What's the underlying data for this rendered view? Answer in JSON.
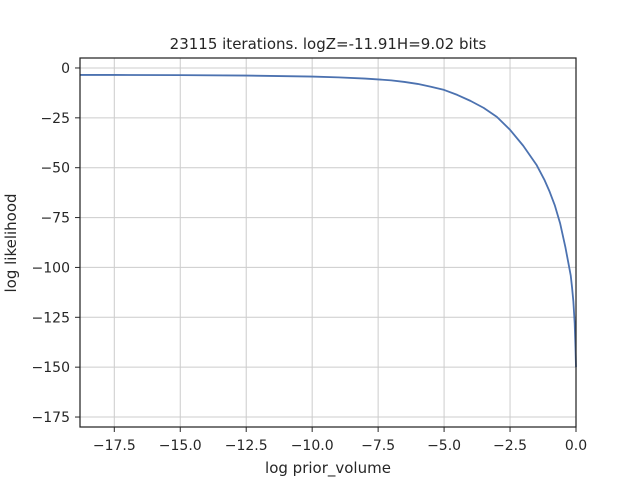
{
  "chart_data": {
    "type": "line",
    "title": "23115 iterations. logZ=-11.91H=9.02 bits",
    "xlabel": "log prior_volume",
    "ylabel": "log likelihood",
    "xlim": [
      -18.8,
      0.0
    ],
    "ylim": [
      -180,
      5
    ],
    "grid": true,
    "xticks": [
      -17.5,
      -15.0,
      -12.5,
      -10.0,
      -7.5,
      -5.0,
      -2.5,
      0.0
    ],
    "xtick_labels": [
      "−17.5",
      "−15.0",
      "−12.5",
      "−10.0",
      "−7.5",
      "−5.0",
      "−2.5",
      "0.0"
    ],
    "yticks": [
      0,
      -25,
      -50,
      -75,
      -100,
      -125,
      -150,
      -175
    ],
    "ytick_labels": [
      "0",
      "−25",
      "−50",
      "−75",
      "−100",
      "−125",
      "−150",
      "−175"
    ],
    "series": [
      {
        "color": "#4c72b0",
        "x": [
          -18.8,
          -17.5,
          -15.0,
          -12.5,
          -10.0,
          -9.0,
          -8.0,
          -7.0,
          -6.5,
          -6.0,
          -5.5,
          -5.0,
          -4.5,
          -4.0,
          -3.5,
          -3.0,
          -2.5,
          -2.0,
          -1.5,
          -1.2,
          -1.0,
          -0.8,
          -0.6,
          -0.4,
          -0.3,
          -0.2,
          -0.15,
          -0.1,
          -0.05,
          -0.02,
          0.0
        ],
        "y": [
          -3.5,
          -3.5,
          -3.6,
          -3.8,
          -4.3,
          -4.7,
          -5.3,
          -6.2,
          -7.0,
          -8.0,
          -9.4,
          -11.0,
          -13.5,
          -16.5,
          -20.0,
          -24.5,
          -31.0,
          -39.0,
          -48.5,
          -56.0,
          -62.0,
          -69.0,
          -78.0,
          -90.0,
          -97.0,
          -104.0,
          -110.0,
          -117.0,
          -128.0,
          -140.0,
          -150.0
        ]
      }
    ]
  }
}
